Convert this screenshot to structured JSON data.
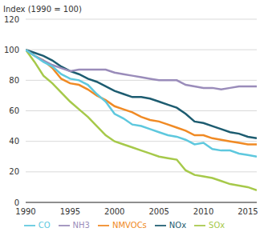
{
  "chart_data": {
    "type": "line",
    "ylabel": "Index (1990 = 100)",
    "x": [
      1990,
      1991,
      1992,
      1993,
      1994,
      1995,
      1996,
      1997,
      1998,
      1999,
      2000,
      2001,
      2002,
      2003,
      2004,
      2005,
      2006,
      2007,
      2008,
      2009,
      2010,
      2011,
      2012,
      2013,
      2014,
      2015,
      2016
    ],
    "series": [
      {
        "name": "NOx",
        "color": "#1d5c70",
        "values": [
          100,
          98,
          96,
          93,
          89,
          86,
          84,
          81,
          79,
          76,
          73,
          71,
          69,
          69,
          68,
          66,
          64,
          62,
          58,
          53,
          52,
          50,
          48,
          46,
          45,
          43,
          42
        ]
      },
      {
        "name": "NMVOCs",
        "color": "#f08a24",
        "values": [
          100,
          96,
          93,
          88,
          81,
          78,
          77,
          74,
          70,
          67,
          63,
          61,
          59,
          56,
          54,
          53,
          51,
          49,
          47,
          44,
          44,
          42,
          41,
          40,
          39,
          38,
          38
        ]
      },
      {
        "name": "SOx",
        "color": "#a6c94a",
        "values": [
          100,
          92,
          83,
          78,
          72,
          66,
          61,
          56,
          50,
          44,
          40,
          38,
          36,
          34,
          32,
          30,
          29,
          28,
          21,
          18,
          17,
          16,
          14,
          12,
          11,
          10,
          8
        ]
      },
      {
        "name": "NH3",
        "color": "#9a8cba",
        "values": [
          100,
          96,
          93,
          90,
          88,
          86,
          87,
          87,
          87,
          87,
          85,
          84,
          83,
          82,
          81,
          80,
          80,
          80,
          77,
          76,
          75,
          75,
          74,
          75,
          76,
          76,
          76
        ]
      },
      {
        "name": "CO",
        "color": "#5ec8de",
        "values": [
          100,
          96,
          92,
          89,
          84,
          81,
          80,
          77,
          71,
          66,
          58,
          55,
          51,
          50,
          48,
          46,
          44,
          43,
          41,
          38,
          39,
          35,
          34,
          34,
          32,
          31,
          30
        ]
      }
    ],
    "xlim": [
      1990,
      2016
    ],
    "xticks": [
      1990,
      1995,
      2000,
      2005,
      2010,
      2015
    ],
    "ylim": [
      0,
      120
    ],
    "yticks": [
      0,
      20,
      40,
      60,
      80,
      100,
      120
    ],
    "grid": true,
    "legend": "bottom"
  }
}
